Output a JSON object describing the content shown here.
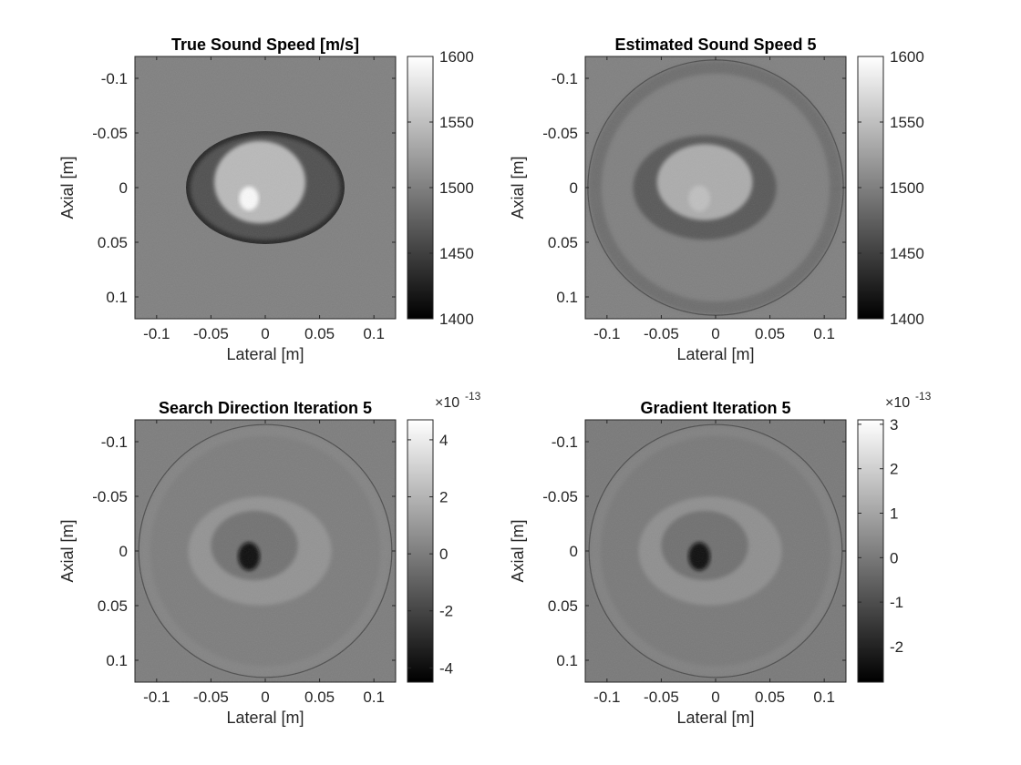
{
  "figure": {
    "colormap": "gray",
    "colors": {
      "background": "#ffffff",
      "axis": "#262626",
      "field": "#7f7f7f"
    }
  },
  "chart_data": [
    {
      "type": "heatmap",
      "title": "True Sound Speed [m/s]",
      "xlabel": "Lateral [m]",
      "ylabel": "Axial [m]",
      "xlim": [
        -0.12,
        0.12
      ],
      "ylim": [
        -0.12,
        0.12
      ],
      "y_reversed": true,
      "x_ticks": [
        -0.1,
        -0.05,
        0,
        0.05,
        0.1
      ],
      "x_tick_labels": [
        "-0.1",
        "-0.05",
        "0",
        "0.05",
        "0.1"
      ],
      "y_ticks": [
        -0.1,
        -0.05,
        0,
        0.05,
        0.1
      ],
      "y_tick_labels": [
        "-0.1",
        "-0.05",
        "0",
        "0.05",
        "0.1"
      ],
      "colorbar": {
        "range": [
          1400,
          1600
        ],
        "ticks": [
          1400,
          1450,
          1500,
          1550,
          1600
        ],
        "tick_labels": [
          "1400",
          "1450",
          "1500",
          "1550",
          "1600"
        ],
        "exponent_label": ""
      },
      "features": [
        {
          "shape": "ellipse",
          "cx": 0.0,
          "cy": 0.0,
          "rx": 0.073,
          "ry": 0.052,
          "value": 1430
        },
        {
          "shape": "ellipse",
          "cx": 0.0,
          "cy": 0.0,
          "rx": 0.069,
          "ry": 0.048,
          "value": 1462
        },
        {
          "shape": "ellipse",
          "cx": -0.005,
          "cy": -0.005,
          "rx": 0.042,
          "ry": 0.038,
          "value": 1545
        },
        {
          "shape": "ellipse",
          "cx": -0.015,
          "cy": 0.01,
          "rx": 0.009,
          "ry": 0.011,
          "value": 1595
        }
      ]
    },
    {
      "type": "heatmap",
      "title": "Estimated Sound Speed 5",
      "xlabel": "Lateral [m]",
      "ylabel": "Axial [m]",
      "xlim": [
        -0.12,
        0.12
      ],
      "ylim": [
        -0.12,
        0.12
      ],
      "y_reversed": true,
      "x_ticks": [
        -0.1,
        -0.05,
        0,
        0.05,
        0.1
      ],
      "x_tick_labels": [
        "-0.1",
        "-0.05",
        "0",
        "0.05",
        "0.1"
      ],
      "y_ticks": [
        -0.1,
        -0.05,
        0,
        0.05,
        0.1
      ],
      "y_tick_labels": [
        "-0.1",
        "-0.05",
        "0",
        "0.05",
        "0.1"
      ],
      "colorbar": {
        "range": [
          1400,
          1600
        ],
        "ticks": [
          1400,
          1450,
          1500,
          1550,
          1600
        ],
        "tick_labels": [
          "1400",
          "1450",
          "1500",
          "1550",
          "1600"
        ],
        "exponent_label": ""
      },
      "features": [
        {
          "shape": "ring",
          "cx": 0.0,
          "cy": 0.0,
          "r": 0.111,
          "width": 0.012,
          "value": 1475
        },
        {
          "shape": "ellipse",
          "cx": -0.01,
          "cy": 0.0,
          "rx": 0.066,
          "ry": 0.048,
          "value": 1470
        },
        {
          "shape": "ellipse",
          "cx": -0.01,
          "cy": -0.005,
          "rx": 0.044,
          "ry": 0.035,
          "value": 1535
        },
        {
          "shape": "ellipse",
          "cx": -0.015,
          "cy": 0.01,
          "rx": 0.01,
          "ry": 0.012,
          "value": 1550
        }
      ]
    },
    {
      "type": "heatmap",
      "title": "Search Direction Iteration 5",
      "xlabel": "Lateral [m]",
      "ylabel": "Axial [m]",
      "xlim": [
        -0.12,
        0.12
      ],
      "ylim": [
        -0.12,
        0.12
      ],
      "y_reversed": true,
      "x_ticks": [
        -0.1,
        -0.05,
        0,
        0.05,
        0.1
      ],
      "x_tick_labels": [
        "-0.1",
        "-0.05",
        "0",
        "0.05",
        "0.1"
      ],
      "y_ticks": [
        -0.1,
        -0.05,
        0,
        0.05,
        0.1
      ],
      "y_tick_labels": [
        "-0.1",
        "-0.05",
        "0",
        "0.05",
        "0.1"
      ],
      "colorbar": {
        "range": [
          -4.5,
          4.7
        ],
        "ticks": [
          -4,
          -2,
          0,
          2,
          4
        ],
        "tick_labels": [
          "-4",
          "-2",
          "0",
          "2",
          "4"
        ],
        "exponent_label": "×10",
        "exponent": "-13"
      },
      "features": [
        {
          "shape": "ring",
          "cx": 0.0,
          "cy": 0.0,
          "r": 0.111,
          "width": 0.01,
          "value": 0.4
        },
        {
          "shape": "ellipse",
          "cx": -0.005,
          "cy": 0.0,
          "rx": 0.066,
          "ry": 0.05,
          "value": 0.8
        },
        {
          "shape": "ellipse",
          "cx": -0.01,
          "cy": -0.005,
          "rx": 0.04,
          "ry": 0.032,
          "value": -0.4
        },
        {
          "shape": "ellipse",
          "cx": -0.015,
          "cy": 0.005,
          "rx": 0.01,
          "ry": 0.013,
          "value": -4.2
        }
      ]
    },
    {
      "type": "heatmap",
      "title": "Gradient Iteration 5",
      "xlabel": "Lateral [m]",
      "ylabel": "Axial [m]",
      "xlim": [
        -0.12,
        0.12
      ],
      "ylim": [
        -0.12,
        0.12
      ],
      "y_reversed": true,
      "x_ticks": [
        -0.1,
        -0.05,
        0,
        0.05,
        0.1
      ],
      "x_tick_labels": [
        "-0.1",
        "-0.05",
        "0",
        "0.05",
        "0.1"
      ],
      "y_ticks": [
        -0.1,
        -0.05,
        0,
        0.05,
        0.1
      ],
      "y_tick_labels": [
        "-0.1",
        "-0.05",
        "0",
        "0.05",
        "0.1"
      ],
      "colorbar": {
        "range": [
          -2.8,
          3.1
        ],
        "ticks": [
          -2,
          -1,
          0,
          1,
          2,
          3
        ],
        "tick_labels": [
          "-2",
          "-1",
          "0",
          "1",
          "2",
          "3"
        ],
        "exponent_label": "×10",
        "exponent": "-13"
      },
      "features": [
        {
          "shape": "ring",
          "cx": 0.0,
          "cy": 0.0,
          "r": 0.111,
          "width": 0.01,
          "value": 0.3
        },
        {
          "shape": "ellipse",
          "cx": -0.005,
          "cy": 0.0,
          "rx": 0.066,
          "ry": 0.05,
          "value": 0.5
        },
        {
          "shape": "ellipse",
          "cx": -0.01,
          "cy": -0.005,
          "rx": 0.04,
          "ry": 0.032,
          "value": -0.2
        },
        {
          "shape": "ellipse",
          "cx": -0.015,
          "cy": 0.005,
          "rx": 0.01,
          "ry": 0.013,
          "value": -2.6
        }
      ]
    }
  ]
}
